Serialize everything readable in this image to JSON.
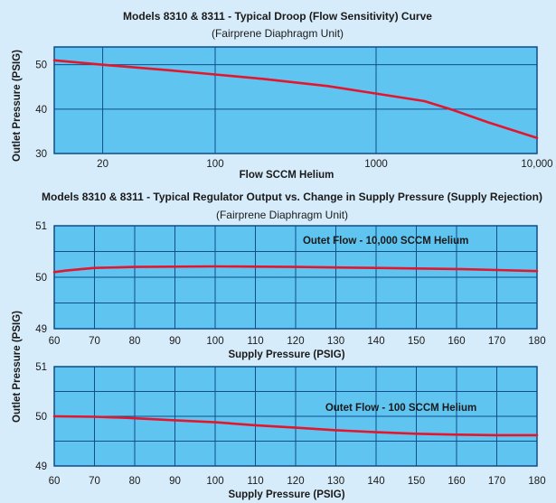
{
  "colors": {
    "page_background": "#d7ecfa",
    "plot_background": "#5fc4ef",
    "grid": "#0f4d8c",
    "frame": "#0f4d8c",
    "series_line": "#e3162e",
    "text": "#1a1a1a"
  },
  "figure": {
    "shared_ylabel": "Outlet Pressure (PSIG)"
  },
  "chart_data": [
    {
      "type": "line",
      "title": "Models 8310 & 8311 - Typical Droop (Flow Sensitivity) Curve",
      "subtitle": "(Fairprene Diaphragm Unit)",
      "xlabel": "Flow SCCM Helium",
      "ylabel": "Outlet Pressure (PSIG)",
      "xscale": "log",
      "xlim": [
        10,
        10000
      ],
      "ylim": [
        30,
        54
      ],
      "xticks": [
        20,
        100,
        1000,
        10000
      ],
      "xtick_labels": [
        "20",
        "100",
        "1000",
        "10,000"
      ],
      "xgrid": [
        20,
        100,
        1000
      ],
      "yticks": [
        30,
        40,
        50
      ],
      "ytick_labels": [
        "30",
        "40",
        "50"
      ],
      "ygrid": [
        40,
        50
      ],
      "grid": true,
      "series": [
        {
          "x": [
            10,
            20,
            50,
            100,
            200,
            500,
            1000,
            2000,
            3000,
            5000,
            10000
          ],
          "y": [
            51,
            50,
            48.8,
            47.8,
            46.8,
            45.2,
            43.5,
            41.8,
            39.8,
            37,
            33.5
          ]
        }
      ],
      "annotations": []
    },
    {
      "type": "line",
      "title": "Models 8310 & 8311 - Typical Regulator Output vs. Change in Supply Pressure (Supply Rejection)",
      "subtitle": "(Fairprene Diaphragm Unit)",
      "xlabel": "Supply Pressure (PSIG)",
      "ylabel": "",
      "xlim": [
        60,
        180
      ],
      "ylim": [
        49,
        51
      ],
      "xticks": [
        60,
        70,
        80,
        90,
        100,
        110,
        120,
        130,
        140,
        150,
        160,
        170,
        180
      ],
      "xtick_labels": [
        "60",
        "70",
        "80",
        "90",
        "100",
        "110",
        "120",
        "130",
        "140",
        "150",
        "160",
        "170",
        "180"
      ],
      "xgrid": [
        70,
        80,
        90,
        100,
        110,
        120,
        130,
        140,
        150,
        160,
        170
      ],
      "yticks": [
        49,
        50,
        51
      ],
      "ytick_labels": [
        "49",
        "50",
        "51"
      ],
      "ygrid": [
        49.5,
        50,
        50.5
      ],
      "grid": true,
      "series": [
        {
          "x": [
            60,
            63,
            70,
            80,
            100,
            120,
            140,
            160,
            170,
            180
          ],
          "y": [
            50.1,
            50.13,
            50.18,
            50.2,
            50.21,
            50.2,
            50.18,
            50.16,
            50.14,
            50.12
          ]
        }
      ],
      "annotations": [
        {
          "text": "Outet Flow - 10,000 SCCM Helium",
          "x": 163,
          "y": 50.72
        }
      ]
    },
    {
      "type": "line",
      "title": "",
      "subtitle": "",
      "xlabel": "Supply Pressure (PSIG)",
      "ylabel": "",
      "xlim": [
        60,
        180
      ],
      "ylim": [
        49,
        51
      ],
      "xticks": [
        60,
        70,
        80,
        90,
        100,
        110,
        120,
        130,
        140,
        150,
        160,
        170,
        180
      ],
      "xtick_labels": [
        "60",
        "70",
        "80",
        "90",
        "100",
        "110",
        "120",
        "130",
        "140",
        "150",
        "160",
        "170",
        "180"
      ],
      "xgrid": [
        70,
        80,
        90,
        100,
        110,
        120,
        130,
        140,
        150,
        160,
        170
      ],
      "yticks": [
        49,
        50,
        51
      ],
      "ytick_labels": [
        "49",
        "50",
        "51"
      ],
      "ygrid": [
        49.5,
        50,
        50.5
      ],
      "grid": true,
      "series": [
        {
          "x": [
            60,
            70,
            78,
            90,
            100,
            110,
            120,
            130,
            140,
            150,
            160,
            170,
            180
          ],
          "y": [
            50,
            49.99,
            49.97,
            49.92,
            49.88,
            49.82,
            49.77,
            49.72,
            49.68,
            49.65,
            49.63,
            49.62,
            49.62
          ]
        }
      ],
      "annotations": [
        {
          "text": "Outet Flow - 100 SCCM Helium",
          "x": 165,
          "y": 50.18
        }
      ]
    }
  ]
}
